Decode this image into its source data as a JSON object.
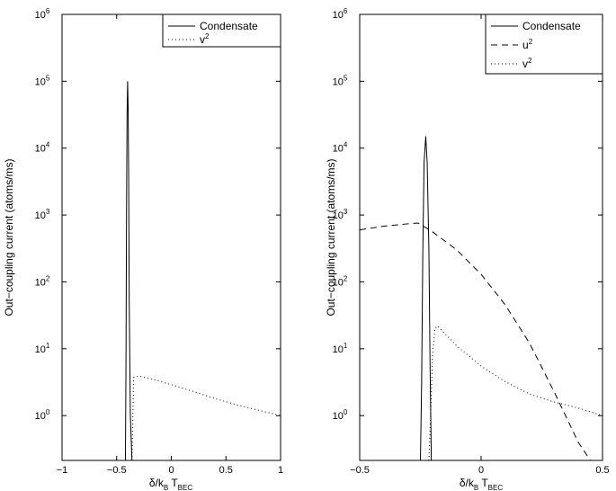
{
  "chart_data": [
    {
      "type": "line",
      "xlabel": "δ/k_B T_BEC",
      "ylabel": "Out−coupling current (atoms/ms)",
      "yscale": "log",
      "xlim": [
        -1,
        1
      ],
      "ylim_exp": [
        -0.67,
        6
      ],
      "xticks": [
        -1,
        -0.5,
        0,
        0.5,
        1
      ],
      "xtick_labels": [
        "−1",
        "−0.5",
        "0",
        "0.5",
        "1"
      ],
      "ytick_exps": [
        0,
        1,
        2,
        3,
        4,
        5,
        6
      ],
      "legend_position": "top-right",
      "series": [
        {
          "name": "Condensate",
          "style": "solid",
          "points": [
            [
              -0.42,
              0.2
            ],
            [
              -0.415,
              5
            ],
            [
              -0.41,
              1000
            ],
            [
              -0.405,
              30000
            ],
            [
              -0.4,
              100000
            ],
            [
              -0.395,
              40000
            ],
            [
              -0.39,
              3000
            ],
            [
              -0.385,
              50
            ],
            [
              -0.375,
              1
            ],
            [
              -0.36,
              0.2
            ]
          ]
        },
        {
          "name": "v",
          "style": "dotted",
          "points": [
            [
              -0.36,
              0.2
            ],
            [
              -0.345,
              3.7
            ],
            [
              -0.3,
              3.9
            ],
            [
              -0.2,
              3.6
            ],
            [
              0,
              2.9
            ],
            [
              0.2,
              2.3
            ],
            [
              0.4,
              1.8
            ],
            [
              0.6,
              1.45
            ],
            [
              0.8,
              1.2
            ],
            [
              1.0,
              1.0
            ]
          ]
        }
      ]
    },
    {
      "type": "line",
      "xlabel": "δ/k_B T_BEC",
      "ylabel": "Out−coupling current (atoms/ms)",
      "yscale": "log",
      "xlim": [
        -0.5,
        0.5
      ],
      "ylim_exp": [
        -0.67,
        6
      ],
      "xticks": [
        -0.5,
        0,
        0.5
      ],
      "xtick_labels": [
        "−0.5",
        "0",
        "0.5"
      ],
      "ytick_exps": [
        0,
        1,
        2,
        3,
        4,
        5,
        6
      ],
      "legend_position": "top-right",
      "series": [
        {
          "name": "Condensate",
          "style": "solid",
          "points": [
            [
              -0.25,
              0.2
            ],
            [
              -0.245,
              3
            ],
            [
              -0.24,
              300
            ],
            [
              -0.235,
              6000
            ],
            [
              -0.228,
              15000
            ],
            [
              -0.222,
              6000
            ],
            [
              -0.215,
              300
            ],
            [
              -0.21,
              5
            ],
            [
              -0.205,
              0.2
            ]
          ]
        },
        {
          "name": "u",
          "style": "dashed",
          "points": [
            [
              -0.5,
              600
            ],
            [
              -0.4,
              680
            ],
            [
              -0.3,
              740
            ],
            [
              -0.26,
              760
            ],
            [
              -0.2,
              560
            ],
            [
              -0.1,
              300
            ],
            [
              0,
              130
            ],
            [
              0.1,
              45
            ],
            [
              0.2,
              12
            ],
            [
              0.3,
              2.3
            ],
            [
              0.4,
              0.4
            ],
            [
              0.45,
              0.2
            ]
          ]
        },
        {
          "name": "v",
          "style": "dotted",
          "points": [
            [
              -0.215,
              0.2
            ],
            [
              -0.205,
              2
            ],
            [
              -0.2,
              8
            ],
            [
              -0.19,
              20
            ],
            [
              -0.18,
              22
            ],
            [
              -0.1,
              11
            ],
            [
              0,
              5.5
            ],
            [
              0.1,
              3.2
            ],
            [
              0.2,
              2.1
            ],
            [
              0.3,
              1.6
            ],
            [
              0.4,
              1.3
            ],
            [
              0.5,
              1.0
            ]
          ]
        }
      ]
    }
  ]
}
